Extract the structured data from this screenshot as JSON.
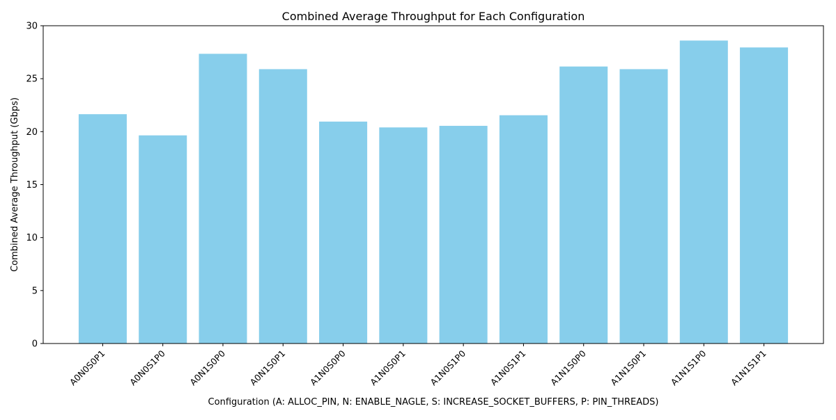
{
  "chart_data": {
    "type": "bar",
    "title": "Combined Average Throughput for Each Configuration",
    "xlabel": "Configuration (A: ALLOC_PIN, N: ENABLE_NAGLE, S: INCREASE_SOCKET_BUFFERS, P: PIN_THREADS)",
    "ylabel": "Combined Average Throughput (Gbps)",
    "categories": [
      "A0N0S0P1",
      "A0N0S1P0",
      "A0N1S0P0",
      "A0N1S0P1",
      "A1N0S0P0",
      "A1N0S0P1",
      "A1N0S1P0",
      "A1N0S1P1",
      "A1N1S0P0",
      "A1N1S0P1",
      "A1N1S1P0",
      "A1N1S1P1"
    ],
    "values": [
      21.65,
      19.65,
      27.35,
      25.9,
      20.95,
      20.4,
      20.55,
      21.55,
      26.15,
      25.9,
      28.6,
      27.95
    ],
    "ylim": [
      0,
      30
    ],
    "yticks": [
      0,
      5,
      10,
      15,
      20,
      25,
      30
    ],
    "bar_color": "#87ceeb",
    "grid": false,
    "legend": "none"
  }
}
